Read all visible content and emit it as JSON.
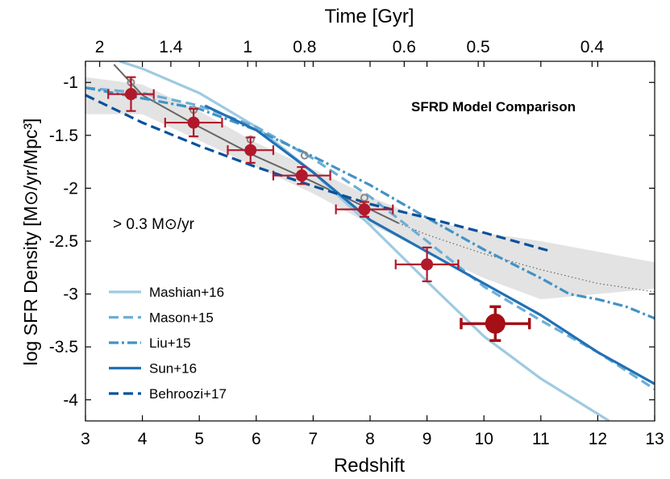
{
  "chart_data": {
    "type": "line",
    "title": "SFRD Model Comparison",
    "xlabel": "Redshift",
    "ylabel": "log SFR Density [M⊙/yr/Mpc³]",
    "top_xlabel": "Time [Gyr]",
    "annotation": "> 0.3 M⊙/yr",
    "xlim": [
      3,
      13
    ],
    "ylim": [
      -4.2,
      -0.8
    ],
    "x_ticks": [
      3,
      4,
      5,
      6,
      7,
      8,
      9,
      10,
      11,
      12,
      13
    ],
    "y_ticks": [
      -4,
      -3.5,
      -3,
      -2.5,
      -2,
      -1.5,
      -1
    ],
    "y_tick_labels": [
      "-4",
      "-3.5",
      "-3",
      "-2.5",
      "-2",
      "-1.5",
      "-1"
    ],
    "top_ticks": [
      {
        "label": "2",
        "z": 3.25
      },
      {
        "label": "1.4",
        "z": 4.5
      },
      {
        "label": "1",
        "z": 5.85
      },
      {
        "label": "0.8",
        "z": 6.85
      },
      {
        "label": "0.6",
        "z": 8.6
      },
      {
        "label": "0.5",
        "z": 9.9
      },
      {
        "label": "0.4",
        "z": 11.9
      }
    ],
    "series": [
      {
        "name": "Mashian+16",
        "color": "#9ecae1",
        "dash": "solid",
        "x": [
          3.6,
          4,
          5,
          6,
          7,
          8,
          9,
          10,
          11,
          12.2
        ],
        "y": [
          -0.8,
          -0.87,
          -1.1,
          -1.42,
          -1.85,
          -2.35,
          -2.88,
          -3.4,
          -3.8,
          -4.2
        ]
      },
      {
        "name": "Mason+15",
        "color": "#6baed6",
        "dash": "dash",
        "x": [
          3,
          4,
          5,
          6,
          7,
          8,
          9,
          10,
          11,
          12,
          13
        ],
        "y": [
          -1.05,
          -1.1,
          -1.22,
          -1.42,
          -1.72,
          -2.08,
          -2.5,
          -2.93,
          -3.25,
          -3.55,
          -3.9
        ]
      },
      {
        "name": "Liu+15",
        "color": "#4292c6",
        "dash": "dashdot",
        "x": [
          3,
          4,
          5,
          6,
          7,
          8,
          9,
          10,
          11,
          11.5,
          12,
          12.5,
          13
        ],
        "y": [
          -1.05,
          -1.15,
          -1.25,
          -1.45,
          -1.7,
          -1.97,
          -2.28,
          -2.58,
          -2.85,
          -3.0,
          -3.05,
          -3.12,
          -3.23
        ]
      },
      {
        "name": "Sun+16",
        "color": "#2171b5",
        "dash": "solid",
        "x": [
          5.1,
          6,
          7,
          8,
          9,
          10,
          11,
          12,
          13
        ],
        "y": [
          -1.22,
          -1.45,
          -1.85,
          -2.3,
          -2.6,
          -2.9,
          -3.2,
          -3.55,
          -3.85
        ]
      },
      {
        "name": "Behroozi+17",
        "color": "#08519c",
        "dash": "dash",
        "x": [
          3,
          4,
          5,
          6,
          7,
          8,
          9,
          10,
          11.2
        ],
        "y": [
          -1.12,
          -1.38,
          -1.6,
          -1.8,
          -1.98,
          -2.15,
          -2.28,
          -2.42,
          -2.6
        ]
      }
    ],
    "fit_curve": {
      "color": "#666666",
      "x": [
        3.5,
        4,
        5,
        6,
        7,
        8,
        8.5
      ],
      "y": [
        -0.83,
        -1.12,
        -1.42,
        -1.7,
        -1.94,
        -2.2,
        -2.33
      ]
    },
    "fit_extrapolation": {
      "color": "#666666",
      "x": [
        8.5,
        9,
        10,
        11,
        12,
        13
      ],
      "y": [
        -2.33,
        -2.44,
        -2.62,
        -2.77,
        -2.9,
        -2.98
      ]
    },
    "confidence_band": {
      "x": [
        3,
        4,
        5,
        6,
        7,
        8,
        9,
        10,
        11,
        12,
        13
      ],
      "upper": [
        -0.95,
        -1.02,
        -1.27,
        -1.57,
        -1.82,
        -2.08,
        -2.3,
        -2.42,
        -2.5,
        -2.6,
        -2.7
      ],
      "lower": [
        -1.3,
        -1.3,
        -1.55,
        -1.8,
        -2.05,
        -2.34,
        -2.6,
        -2.85,
        -3.05,
        -3.0,
        -2.95
      ]
    },
    "open_points": {
      "color": "#888888",
      "x": [
        3.8,
        4.9,
        5.9,
        6.85,
        7.9
      ],
      "y": [
        -1.0,
        -1.26,
        -1.54,
        -1.69,
        -2.09
      ]
    },
    "data_points": [
      {
        "x": 3.8,
        "y": -1.11,
        "xerr": [
          0.4,
          0.4
        ],
        "yerr": [
          0.16,
          0.16
        ],
        "size": "normal"
      },
      {
        "x": 4.9,
        "y": -1.38,
        "xerr": [
          0.5,
          0.5
        ],
        "yerr": [
          0.13,
          0.13
        ],
        "size": "normal"
      },
      {
        "x": 5.9,
        "y": -1.64,
        "xerr": [
          0.4,
          0.4
        ],
        "yerr": [
          0.12,
          0.12
        ],
        "size": "normal"
      },
      {
        "x": 6.8,
        "y": -1.88,
        "xerr": [
          0.5,
          0.5
        ],
        "yerr": [
          0.08,
          0.08
        ],
        "size": "normal"
      },
      {
        "x": 7.9,
        "y": -2.2,
        "xerr": [
          0.5,
          0.5
        ],
        "yerr": [
          0.07,
          0.07
        ],
        "size": "normal"
      },
      {
        "x": 9.0,
        "y": -2.72,
        "xerr": [
          0.55,
          0.55
        ],
        "yerr": [
          0.16,
          0.16
        ],
        "size": "normal"
      },
      {
        "x": 10.2,
        "y": -3.28,
        "xerr": [
          0.6,
          0.6
        ],
        "yerr": [
          0.16,
          0.16
        ],
        "size": "large"
      }
    ],
    "point_color": "#b2182b",
    "big_point_color": "#a50f15",
    "legend_position": "bottom-left"
  }
}
